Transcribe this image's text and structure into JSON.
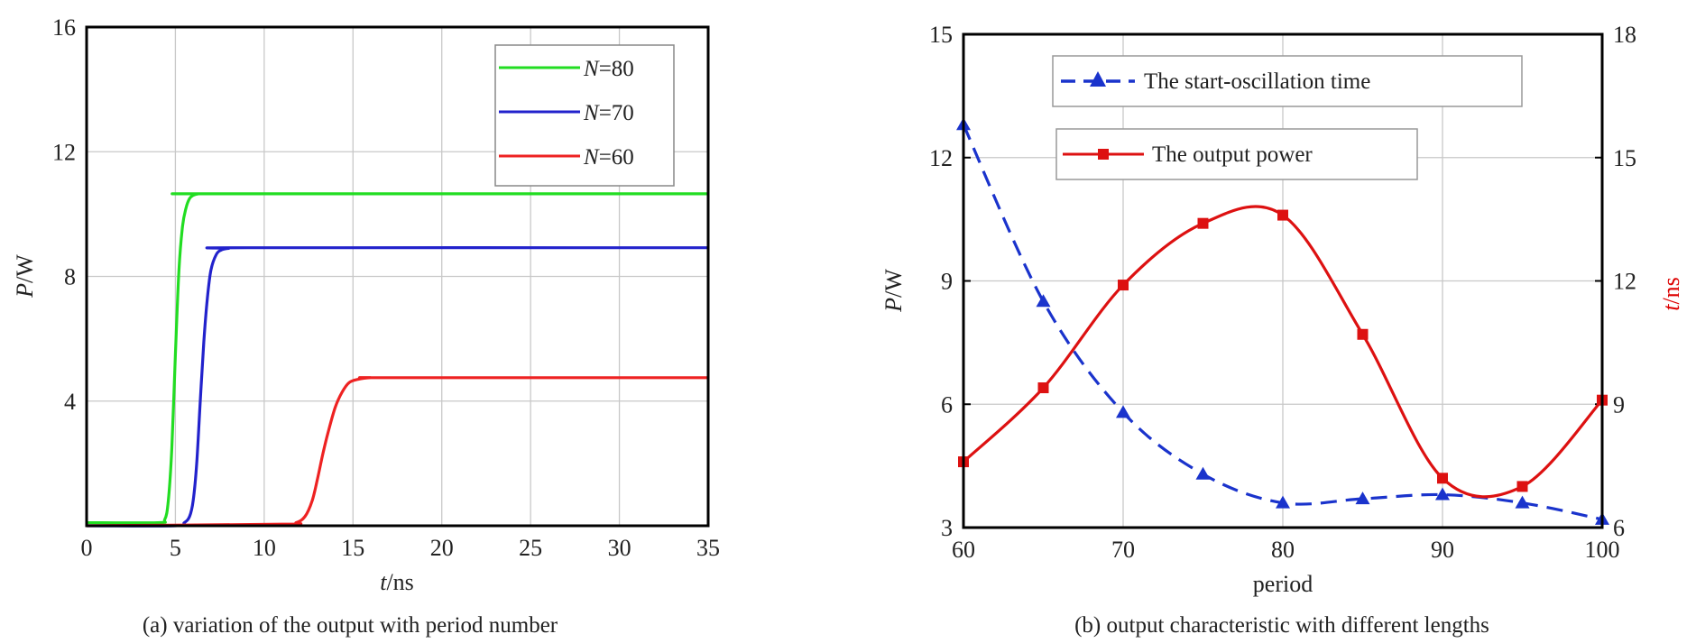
{
  "chart_data": [
    {
      "id": "a",
      "type": "line",
      "caption": "(a) variation of the output with period number",
      "xlabel": {
        "italic": "t",
        "rest": "/ns"
      },
      "ylabel": {
        "italic": "P",
        "rest": "/W"
      },
      "xlim": [
        0,
        35
      ],
      "ylim": [
        0,
        16
      ],
      "x_ticks": [
        0,
        5,
        10,
        15,
        20,
        25,
        30,
        35
      ],
      "y_ticks": [
        4,
        8,
        12,
        16
      ],
      "y_label_ticks": [
        "4",
        "8",
        "12",
        "16"
      ],
      "x_label_ticks": [
        "0",
        "5",
        "10",
        "15",
        "20",
        "25",
        "30",
        "35"
      ],
      "grid": true,
      "legend_position": "top-right",
      "series": [
        {
          "name": "N=80",
          "legend_italic": "N",
          "legend_rest": "=80",
          "color": "#22dd22",
          "x": [
            0,
            4,
            4.4,
            4.6,
            4.8,
            5.0,
            5.2,
            5.4,
            5.6,
            5.8,
            6.0,
            6.3,
            6.6,
            7.0,
            35
          ],
          "y": [
            0.1,
            0.1,
            0.2,
            0.8,
            2.5,
            5.5,
            8.2,
            9.6,
            10.2,
            10.5,
            10.6,
            10.65,
            10.65,
            10.65,
            10.65
          ]
        },
        {
          "name": "N=70",
          "legend_italic": "N",
          "legend_rest": "=70",
          "color": "#2222cc",
          "x": [
            0,
            5.0,
            5.5,
            5.8,
            6.0,
            6.2,
            6.4,
            6.6,
            6.8,
            7.0,
            7.3,
            7.6,
            8.0,
            9.0,
            35
          ],
          "y": [
            0.0,
            0.0,
            0.1,
            0.3,
            0.8,
            2.0,
            4.0,
            5.9,
            7.3,
            8.2,
            8.7,
            8.85,
            8.9,
            8.92,
            8.92
          ]
        },
        {
          "name": "N=60",
          "legend_italic": "N",
          "legend_rest": "=60",
          "color": "#ee2222",
          "x": [
            0,
            11.0,
            11.8,
            12.3,
            12.7,
            13.0,
            13.3,
            13.6,
            14.0,
            14.4,
            14.8,
            15.3,
            16.0,
            17.0,
            35
          ],
          "y": [
            0.0,
            0.05,
            0.1,
            0.3,
            0.8,
            1.5,
            2.3,
            3.0,
            3.8,
            4.3,
            4.6,
            4.7,
            4.75,
            4.75,
            4.75
          ]
        }
      ]
    },
    {
      "id": "b",
      "type": "line",
      "caption": "(b) output characteristic with different lengths",
      "xlabel": "period",
      "ylabel": {
        "italic": "P",
        "rest": "/W"
      },
      "y2label": {
        "italic": "t",
        "rest": "/ns",
        "color": "#dd0000"
      },
      "xlim": [
        60,
        100
      ],
      "ylim": [
        3,
        15
      ],
      "y2lim": [
        6,
        18
      ],
      "x_ticks": [
        60,
        70,
        80,
        90,
        100
      ],
      "y_ticks": [
        3,
        6,
        9,
        12,
        15
      ],
      "y2_ticks": [
        6,
        9,
        12,
        15,
        18
      ],
      "x_label_ticks": [
        "60",
        "70",
        "80",
        "90",
        "100"
      ],
      "y_label_ticks": [
        "3",
        "6",
        "9",
        "12",
        "15"
      ],
      "y2_label_ticks": [
        "6",
        "9",
        "12",
        "15",
        "18"
      ],
      "grid": true,
      "legend_position": "top",
      "series": [
        {
          "name": "The start-oscillation time",
          "axis": "right",
          "color": "#1a33cc",
          "style": "dashed",
          "marker": "triangle",
          "x": [
            60,
            65,
            70,
            75,
            80,
            85,
            90,
            95,
            100
          ],
          "y": [
            15.8,
            11.5,
            8.8,
            7.3,
            6.6,
            6.7,
            6.8,
            6.6,
            6.2
          ]
        },
        {
          "name": "The output power",
          "axis": "left",
          "color": "#dd1111",
          "style": "solid",
          "marker": "square",
          "x": [
            60,
            65,
            70,
            75,
            80,
            85,
            90,
            95,
            100
          ],
          "y": [
            4.6,
            6.4,
            8.9,
            10.4,
            10.6,
            7.7,
            4.2,
            4.0,
            6.1
          ]
        }
      ]
    }
  ]
}
